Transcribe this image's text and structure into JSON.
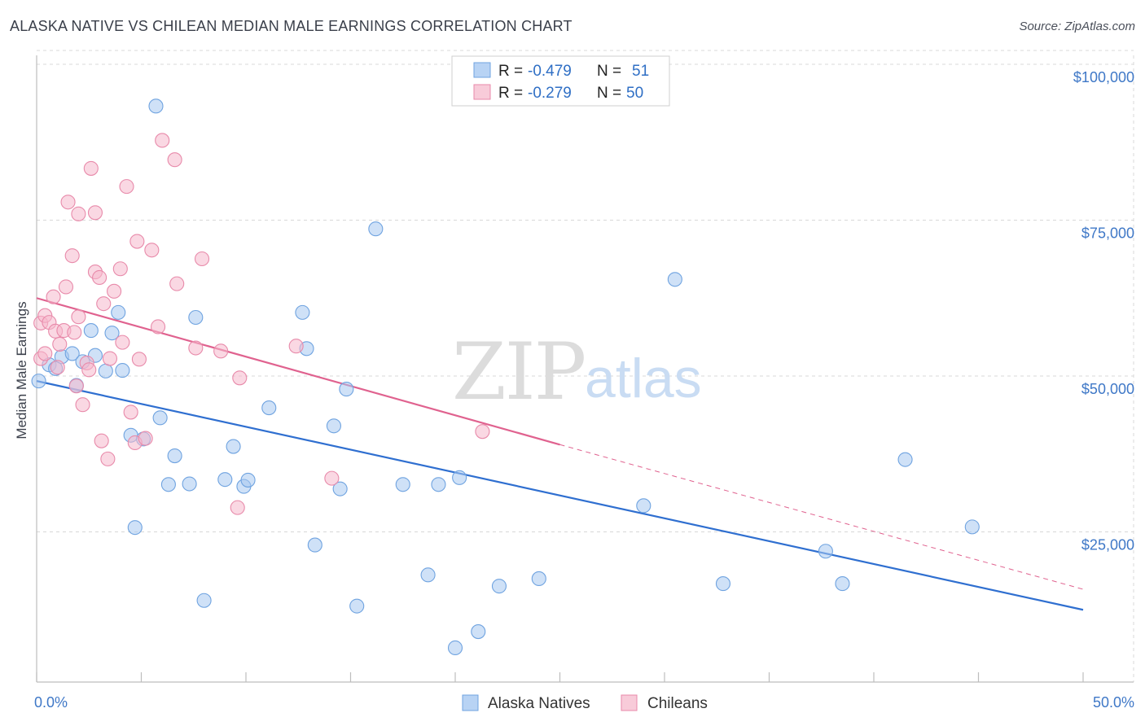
{
  "title": "ALASKA NATIVE VS CHILEAN MEDIAN MALE EARNINGS CORRELATION CHART",
  "source": "Source: ZipAtlas.com",
  "watermark": {
    "zip": "ZIP",
    "atlas": "atlas"
  },
  "legend_top": {
    "rows": [
      {
        "r_label": "R =",
        "r_value": "-0.479",
        "n_label": "N =",
        "n_value": "51",
        "color": "#a8c8f0"
      },
      {
        "r_label": "R =",
        "r_value": "-0.279",
        "n_label": "N =",
        "n_value": "50",
        "color": "#f5b8cc"
      }
    ]
  },
  "legend_bottom": [
    {
      "label": "Alaska Natives",
      "color": "#a8c8f0"
    },
    {
      "label": "Chileans",
      "color": "#f5b8cc"
    }
  ],
  "chart_data": {
    "type": "scatter",
    "title": "ALASKA NATIVE VS CHILEAN MEDIAN MALE EARNINGS CORRELATION CHART",
    "xlabel": "",
    "ylabel": "Median Male Earnings",
    "xlim": [
      0,
      50
    ],
    "ylim": [
      2000,
      104000
    ],
    "x_tick_labels": [
      "0.0%",
      "50.0%"
    ],
    "y_ticks": [
      25000,
      50000,
      75000,
      100000
    ],
    "y_tick_labels": [
      "$25,000",
      "$50,000",
      "$75,000",
      "$100,000"
    ],
    "grid": true,
    "series": [
      {
        "name": "Alaska Natives",
        "color": "#a8c8f0",
        "stroke": "#6fa3e0",
        "points": [
          [
            0.1,
            49200
          ],
          [
            0.6,
            51800
          ],
          [
            1.2,
            53100
          ],
          [
            1.7,
            53600
          ],
          [
            1.9,
            48500
          ],
          [
            2.2,
            52300
          ],
          [
            2.6,
            57300
          ],
          [
            2.8,
            53300
          ],
          [
            3.3,
            50800
          ],
          [
            3.6,
            56900
          ],
          [
            3.9,
            60200
          ],
          [
            4.1,
            50900
          ],
          [
            4.5,
            40500
          ],
          [
            4.7,
            25700
          ],
          [
            5.1,
            39900
          ],
          [
            5.7,
            93300
          ],
          [
            5.9,
            43300
          ],
          [
            6.3,
            32600
          ],
          [
            6.6,
            37200
          ],
          [
            7.3,
            32700
          ],
          [
            7.6,
            59400
          ],
          [
            8.0,
            14000
          ],
          [
            9.0,
            33400
          ],
          [
            9.4,
            38700
          ],
          [
            9.9,
            32300
          ],
          [
            10.1,
            33300
          ],
          [
            11.1,
            44900
          ],
          [
            12.7,
            60200
          ],
          [
            12.9,
            54400
          ],
          [
            13.3,
            22900
          ],
          [
            14.2,
            42000
          ],
          [
            14.5,
            31900
          ],
          [
            14.8,
            47900
          ],
          [
            15.3,
            13100
          ],
          [
            16.2,
            73600
          ],
          [
            17.5,
            32600
          ],
          [
            18.7,
            18100
          ],
          [
            19.2,
            32600
          ],
          [
            20.0,
            6400
          ],
          [
            20.2,
            33700
          ],
          [
            21.1,
            9000
          ],
          [
            22.1,
            16300
          ],
          [
            24.0,
            17500
          ],
          [
            29.0,
            29200
          ],
          [
            30.5,
            65500
          ],
          [
            32.8,
            16700
          ],
          [
            37.7,
            21900
          ],
          [
            38.5,
            16700
          ],
          [
            41.5,
            36600
          ],
          [
            44.7,
            25800
          ],
          [
            0.9,
            51200
          ]
        ]
      },
      {
        "name": "Chileans",
        "color": "#f5b8cc",
        "stroke": "#e88aaa",
        "points": [
          [
            0.2,
            52800
          ],
          [
            0.2,
            58500
          ],
          [
            0.4,
            59700
          ],
          [
            0.6,
            58600
          ],
          [
            0.8,
            62700
          ],
          [
            0.9,
            57200
          ],
          [
            1.0,
            51400
          ],
          [
            1.1,
            55100
          ],
          [
            1.3,
            57300
          ],
          [
            1.4,
            64300
          ],
          [
            1.5,
            77900
          ],
          [
            1.7,
            69300
          ],
          [
            1.8,
            57000
          ],
          [
            2.0,
            59500
          ],
          [
            2.0,
            76000
          ],
          [
            2.2,
            45400
          ],
          [
            2.4,
            52100
          ],
          [
            2.5,
            51000
          ],
          [
            2.6,
            83300
          ],
          [
            2.8,
            66700
          ],
          [
            2.8,
            76200
          ],
          [
            3.0,
            65800
          ],
          [
            3.1,
            39600
          ],
          [
            3.2,
            61600
          ],
          [
            3.4,
            36700
          ],
          [
            3.5,
            52800
          ],
          [
            3.7,
            63600
          ],
          [
            4.0,
            67200
          ],
          [
            4.1,
            55400
          ],
          [
            4.3,
            80400
          ],
          [
            4.5,
            44200
          ],
          [
            4.7,
            39300
          ],
          [
            4.8,
            71600
          ],
          [
            4.9,
            52700
          ],
          [
            5.2,
            40000
          ],
          [
            5.5,
            70200
          ],
          [
            5.8,
            57900
          ],
          [
            6.0,
            87800
          ],
          [
            6.6,
            84700
          ],
          [
            6.7,
            64800
          ],
          [
            7.6,
            54500
          ],
          [
            7.9,
            68800
          ],
          [
            8.8,
            54000
          ],
          [
            9.6,
            28900
          ],
          [
            9.7,
            49700
          ],
          [
            12.4,
            54800
          ],
          [
            14.1,
            33600
          ],
          [
            21.3,
            41100
          ],
          [
            1.9,
            48400
          ],
          [
            0.4,
            53600
          ]
        ]
      }
    ],
    "trend_lines": [
      {
        "series": "Alaska Natives",
        "x": [
          0,
          50
        ],
        "y": [
          49200,
          12500
        ],
        "color": "#2f6fd0"
      },
      {
        "series": "Chileans",
        "x": [
          0,
          25
        ],
        "y": [
          62500,
          39000
        ],
        "x_extended": [
          25,
          50
        ],
        "y_extended": [
          39000,
          15800
        ],
        "color": "#e0628f"
      }
    ]
  }
}
